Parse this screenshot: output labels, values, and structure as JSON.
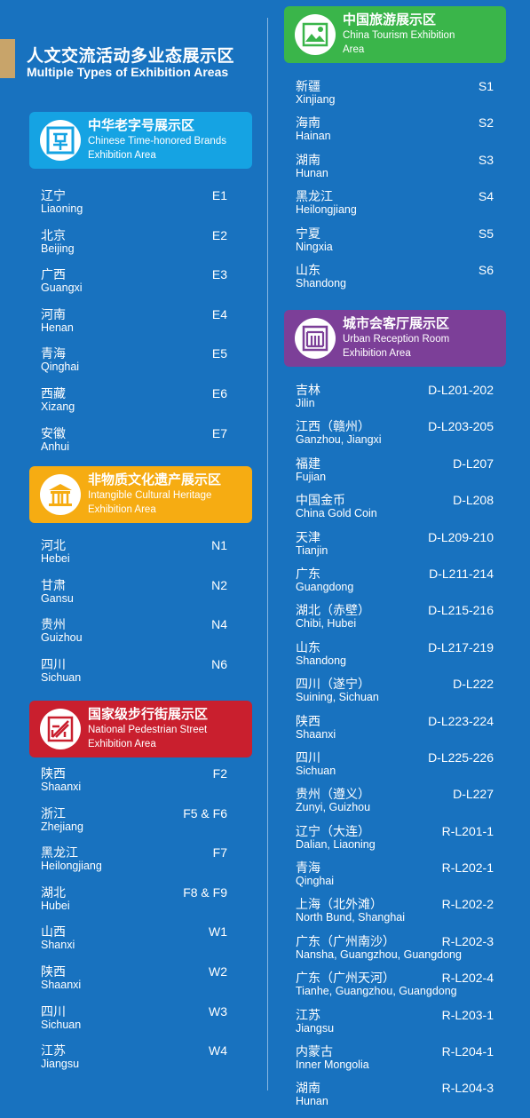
{
  "title": {
    "zh": "人文交流活动多业态展示区",
    "en": "Multiple Types of Exhibition Areas"
  },
  "sections": {
    "brands": {
      "zh": "中华老字号展示区",
      "en1": "Chinese Time-honored Brands",
      "en2": "Exhibition Area",
      "color": "#15a3e3",
      "items": [
        {
          "zh": "辽宁",
          "en": "Liaoning",
          "code": "E1"
        },
        {
          "zh": "北京",
          "en": "Beijing",
          "code": "E2"
        },
        {
          "zh": "广西",
          "en": "Guangxi",
          "code": "E3"
        },
        {
          "zh": "河南",
          "en": "Henan",
          "code": "E4"
        },
        {
          "zh": "青海",
          "en": "Qinghai",
          "code": "E5"
        },
        {
          "zh": "西藏",
          "en": "Xizang",
          "code": "E6"
        },
        {
          "zh": "安徽",
          "en": "Anhui",
          "code": "E7"
        }
      ]
    },
    "heritage": {
      "zh": "非物质文化遗产展示区",
      "en1": "Intangible Cultural Heritage",
      "en2": "Exhibition Area",
      "color": "#f6ac12",
      "items": [
        {
          "zh": "河北",
          "en": "Hebei",
          "code": "N1"
        },
        {
          "zh": "甘肃",
          "en": "Gansu",
          "code": "N2"
        },
        {
          "zh": "贵州",
          "en": "Guizhou",
          "code": "N4"
        },
        {
          "zh": "四川",
          "en": "Sichuan",
          "code": "N6"
        }
      ]
    },
    "street": {
      "zh": "国家级步行街展示区",
      "en1": "National Pedestrian Street",
      "en2": "Exhibition Area",
      "color": "#c91f2e",
      "items": [
        {
          "zh": "陕西",
          "en": "Shaanxi",
          "code": "F2"
        },
        {
          "zh": "浙江",
          "en": "Zhejiang",
          "code": "F5 & F6"
        },
        {
          "zh": "黑龙江",
          "en": "Heilongjiang",
          "code": "F7"
        },
        {
          "zh": "湖北",
          "en": "Hubei",
          "code": "F8 & F9"
        },
        {
          "zh": "山西",
          "en": "Shanxi",
          "code": "W1"
        },
        {
          "zh": "陕西",
          "en": "Shaanxi",
          "code": "W2"
        },
        {
          "zh": "四川",
          "en": "Sichuan",
          "code": "W3"
        },
        {
          "zh": "江苏",
          "en": "Jiangsu",
          "code": "W4"
        }
      ]
    },
    "tourism": {
      "zh": "中国旅游展示区",
      "en1": "China Tourism Exhibition",
      "en2": "Area",
      "color": "#3ab54a",
      "items": [
        {
          "zh": "新疆",
          "en": "Xinjiang",
          "code": "S1"
        },
        {
          "zh": "海南",
          "en": "Hainan",
          "code": "S2"
        },
        {
          "zh": "湖南",
          "en": "Hunan",
          "code": "S3"
        },
        {
          "zh": "黑龙江",
          "en": "Heilongjiang",
          "code": "S4"
        },
        {
          "zh": "宁夏",
          "en": "Ningxia",
          "code": "S5"
        },
        {
          "zh": "山东",
          "en": "Shandong",
          "code": "S6"
        }
      ]
    },
    "reception": {
      "zh": "城市会客厅展示区",
      "en1": "Urban Reception Room",
      "en2": "Exhibition Area",
      "color": "#7c3f98",
      "items": [
        {
          "zh": "吉林",
          "en": "Jilin",
          "code": "D-L201-202"
        },
        {
          "zh": "江西（赣州）",
          "en": "Ganzhou, Jiangxi",
          "code": "D-L203-205"
        },
        {
          "zh": "福建",
          "en": "Fujian",
          "code": "D-L207"
        },
        {
          "zh": "中国金币",
          "en": "China Gold Coin",
          "code": "D-L208"
        },
        {
          "zh": "天津",
          "en": "Tianjin",
          "code": "D-L209-210"
        },
        {
          "zh": "广东",
          "en": "Guangdong",
          "code": "D-L211-214"
        },
        {
          "zh": "湖北（赤壁）",
          "en": "Chibi, Hubei",
          "code": "D-L215-216"
        },
        {
          "zh": "山东",
          "en": "Shandong",
          "code": "D-L217-219"
        },
        {
          "zh": "四川（遂宁）",
          "en": "Suining, Sichuan",
          "code": "D-L222"
        },
        {
          "zh": "陕西",
          "en": "Shaanxi",
          "code": "D-L223-224"
        },
        {
          "zh": "四川",
          "en": "Sichuan",
          "code": "D-L225-226"
        },
        {
          "zh": "贵州（遵义）",
          "en": "Zunyi, Guizhou",
          "code": "D-L227"
        },
        {
          "zh": "辽宁（大连）",
          "en": "Dalian, Liaoning",
          "code": "R-L201-1"
        },
        {
          "zh": "青海",
          "en": "Qinghai",
          "code": "R-L202-1"
        },
        {
          "zh": "上海（北外滩）",
          "en": "North Bund, Shanghai",
          "code": "R-L202-2"
        },
        {
          "zh": "广东（广州南沙）",
          "en": "Nansha, Guangzhou, Guangdong",
          "code": "R-L202-3"
        },
        {
          "zh": "广东（广州天河）",
          "en": "Tianhe, Guangzhou, Guangdong",
          "code": "R-L202-4"
        },
        {
          "zh": "江苏",
          "en": "Jiangsu",
          "code": "R-L203-1"
        },
        {
          "zh": "内蒙古",
          "en": "Inner Mongolia",
          "code": "R-L204-1"
        },
        {
          "zh": "湖南",
          "en": "Hunan",
          "code": "R-L204-3"
        }
      ]
    }
  }
}
